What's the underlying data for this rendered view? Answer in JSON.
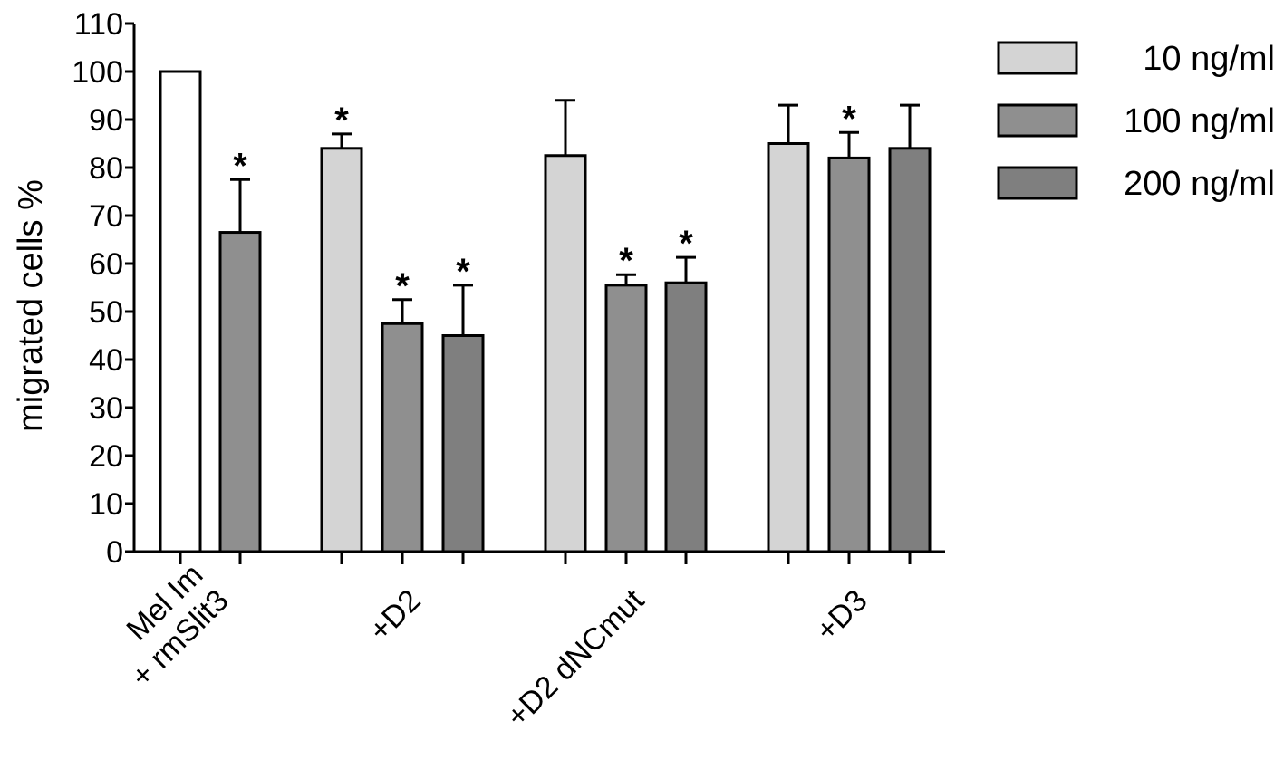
{
  "chart_data": {
    "type": "bar",
    "ylabel": "migrated cells %",
    "xlabel": "",
    "ylim": [
      0,
      110
    ],
    "yticks": [
      0,
      10,
      20,
      30,
      40,
      50,
      60,
      70,
      80,
      90,
      100,
      110
    ],
    "grid": false,
    "legend_position": "top-right",
    "series_defs": [
      {
        "name": "10 ng/ml",
        "color": "#d4d4d4"
      },
      {
        "name": "100 ng/ml",
        "color": "#8f8f8f"
      },
      {
        "name": "200 ng/ml",
        "color": "#7f7f7f"
      }
    ],
    "groups": [
      {
        "label_lines": [
          "Mel Im",
          "+ rmSlit3"
        ],
        "bars": [
          {
            "value": 100,
            "error": 0,
            "significant": false,
            "color": "#ffffff"
          },
          {
            "value": 66.5,
            "error": 11,
            "significant": true,
            "color": "#8f8f8f"
          }
        ]
      },
      {
        "label_lines": [
          "+D2"
        ],
        "bars": [
          {
            "value": 84,
            "error": 3,
            "significant": true,
            "color": "#d4d4d4"
          },
          {
            "value": 47.5,
            "error": 5,
            "significant": true,
            "color": "#8f8f8f"
          },
          {
            "value": 45,
            "error": 10.5,
            "significant": true,
            "color": "#7f7f7f"
          }
        ]
      },
      {
        "label_lines": [
          "+D2 dNCmut"
        ],
        "bars": [
          {
            "value": 82.5,
            "error": 11.5,
            "significant": false,
            "color": "#d4d4d4"
          },
          {
            "value": 55.5,
            "error": 2.2,
            "significant": true,
            "color": "#8f8f8f"
          },
          {
            "value": 56,
            "error": 5.3,
            "significant": true,
            "color": "#7f7f7f"
          }
        ]
      },
      {
        "label_lines": [
          "+D3"
        ],
        "bars": [
          {
            "value": 85,
            "error": 8,
            "significant": false,
            "color": "#d4d4d4"
          },
          {
            "value": 82,
            "error": 5.3,
            "significant": true,
            "color": "#8f8f8f"
          },
          {
            "value": 84,
            "error": 9,
            "significant": false,
            "color": "#7f7f7f"
          }
        ]
      }
    ],
    "significance_marker": "*"
  }
}
